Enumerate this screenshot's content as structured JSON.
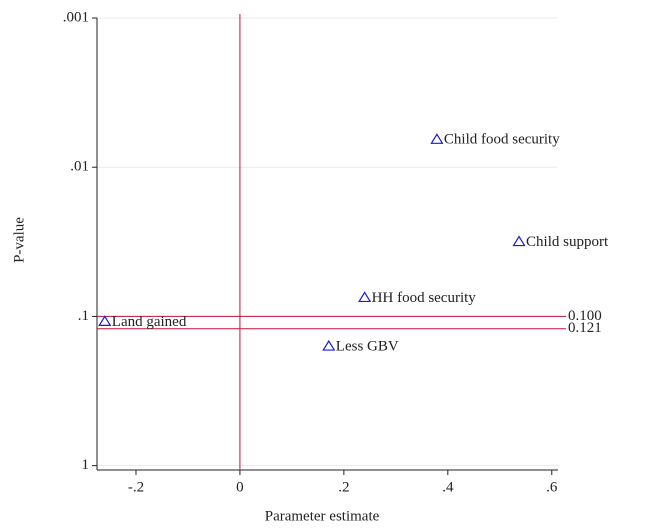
{
  "chart_data": {
    "type": "scatter",
    "xlabel": "Parameter estimate",
    "ylabel": "P-value",
    "x": [
      0.379,
      0.537,
      0.24,
      -0.26,
      0.171
    ],
    "y": [
      0.0065,
      0.0315,
      0.0746,
      0.108,
      0.158
    ],
    "point_labels": [
      "Child food security",
      "Child support",
      "HH food security",
      "Land gained",
      "Less GBV"
    ],
    "color": "#1a1adc",
    "line_color": "#c0143c",
    "xlim": [
      -0.275,
      0.612
    ],
    "ylim": [
      0.001,
      1.07
    ],
    "y_log": true,
    "y_reversed": true,
    "xticks": [
      {
        "value": -0.2,
        "label": "-.2"
      },
      0,
      {
        "value": 0.2,
        "label": ".2"
      },
      {
        "value": 0.4,
        "label": ".4"
      },
      {
        "value": 0.6,
        "label": ".6"
      }
    ],
    "yticks": [
      {
        "value": 0.001,
        "label": ".001"
      },
      {
        "value": 0.01,
        "label": ".01"
      },
      {
        "value": 0.1,
        "label": ".1"
      },
      1
    ],
    "hlines": [
      {
        "value": 0.1,
        "label": "0.100"
      },
      {
        "value": 0.121,
        "label": "0.121"
      }
    ],
    "vline": 0,
    "grid": true
  }
}
